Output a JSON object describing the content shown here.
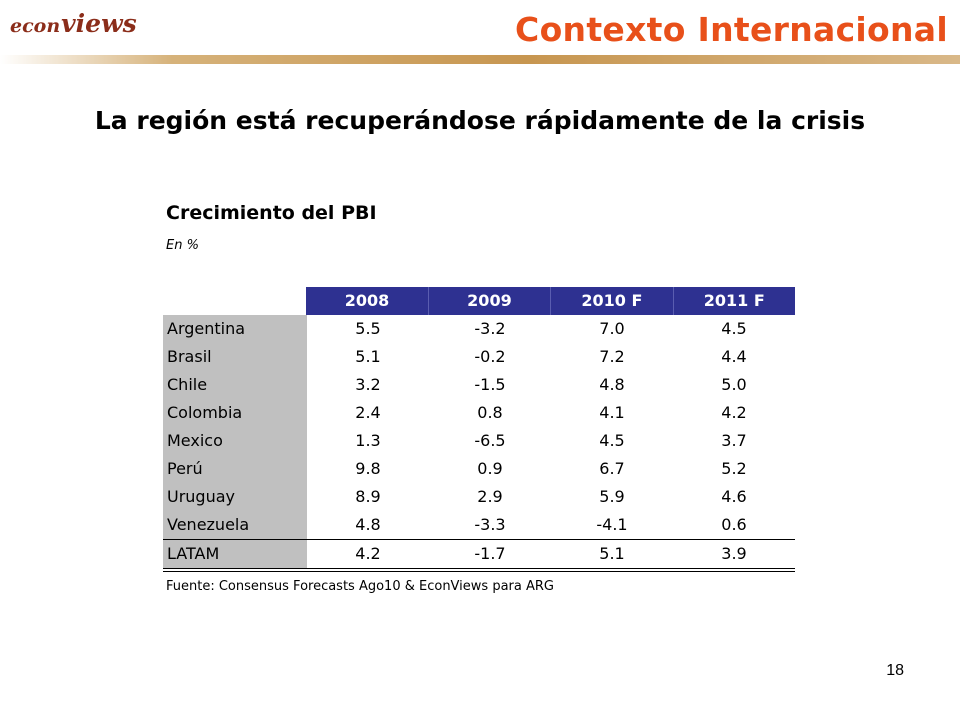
{
  "header": {
    "logo_prefix": "econ",
    "logo_suffix": "views",
    "title": "Contexto Internacional",
    "accent_color": "#e8501a"
  },
  "slide": {
    "subtitle": "La región está recuperándose rápidamente de la crisis",
    "page_number": "18"
  },
  "table": {
    "title": "Crecimiento del PBI",
    "unit": "En %",
    "header_color": "#2e3191",
    "columns": [
      "2008",
      "2009",
      "2010 F",
      "2011 F"
    ],
    "rows": [
      {
        "name": "Argentina",
        "values": [
          "5.5",
          "-3.2",
          "7.0",
          "4.5"
        ]
      },
      {
        "name": "Brasil",
        "values": [
          "5.1",
          "-0.2",
          "7.2",
          "4.4"
        ]
      },
      {
        "name": "Chile",
        "values": [
          "3.2",
          "-1.5",
          "4.8",
          "5.0"
        ]
      },
      {
        "name": "Colombia",
        "values": [
          "2.4",
          "0.8",
          "4.1",
          "4.2"
        ]
      },
      {
        "name": "Mexico",
        "values": [
          "1.3",
          "-6.5",
          "4.5",
          "3.7"
        ]
      },
      {
        "name": "Perú",
        "values": [
          "9.8",
          "0.9",
          "6.7",
          "5.2"
        ]
      },
      {
        "name": "Uruguay",
        "values": [
          "8.9",
          "2.9",
          "5.9",
          "4.6"
        ]
      },
      {
        "name": "Venezuela",
        "values": [
          "4.8",
          "-3.3",
          "-4.1",
          "0.6"
        ]
      },
      {
        "name": "LATAM",
        "values": [
          "4.2",
          "-1.7",
          "5.1",
          "3.9"
        ]
      }
    ],
    "source": "Fuente: Consensus Forecasts Ago10 & EconViews para ARG"
  }
}
